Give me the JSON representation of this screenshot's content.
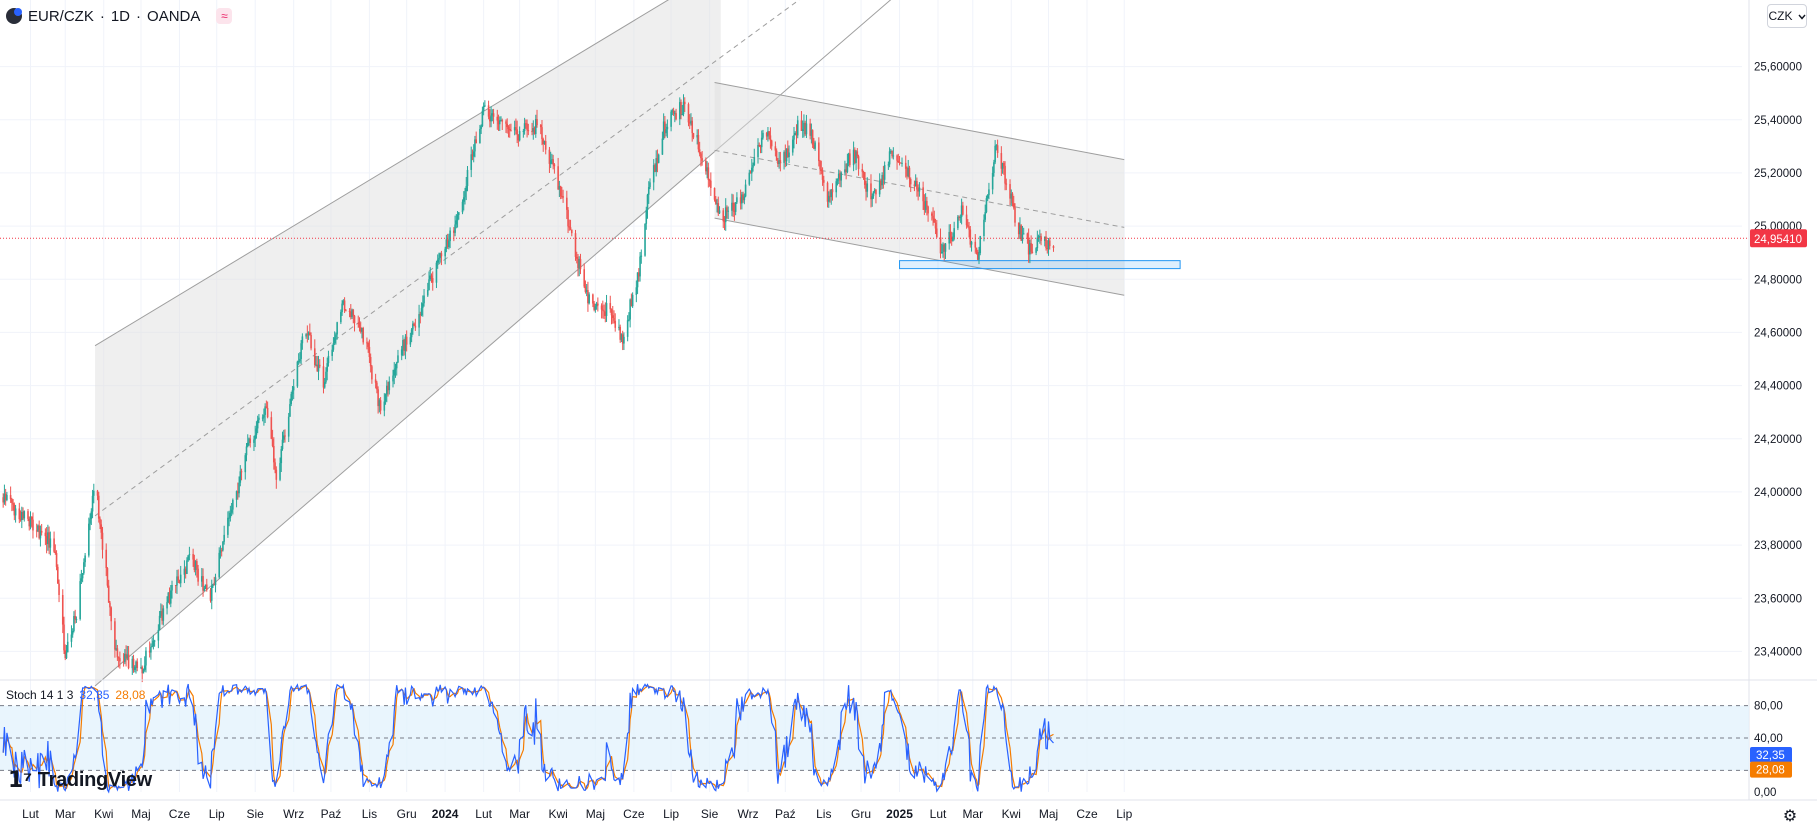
{
  "header": {
    "symbol": "EUR/CZK",
    "interval": "1D",
    "exchange": "OANDA",
    "separator": "·",
    "approx_icon": "≈"
  },
  "currency_button": {
    "label": "CZK",
    "icon": "chevron-down-icon"
  },
  "price_axis": {
    "labels": [
      "25,60000",
      "25,40000",
      "25,20000",
      "25,00000",
      "24,80000",
      "24,60000",
      "24,40000",
      "24,20000",
      "24,00000",
      "23,80000",
      "23,60000",
      "23,40000"
    ],
    "current_price_label": "24,95410"
  },
  "stoch": {
    "name": "Stoch 14 1 3",
    "k_value": "32,35",
    "d_value": "28,08",
    "k_color": "#2962ff",
    "d_color": "#f57c00",
    "axis_labels": [
      "80,00",
      "40,00",
      "0,00"
    ]
  },
  "time_axis": {
    "labels": [
      "Lut",
      "Mar",
      "Kwi",
      "Maj",
      "Cze",
      "Lip",
      "Sie",
      "Wrz",
      "Paź",
      "Lis",
      "Gru",
      "2024",
      "Lut",
      "Mar",
      "Kwi",
      "Maj",
      "Cze",
      "Lip",
      "Sie",
      "Wrz",
      "Paź",
      "Lis",
      "Gru",
      "2025",
      "Lut",
      "Mar",
      "Kwi",
      "Maj",
      "Cze",
      "Lip"
    ],
    "bold": [
      "2024",
      "2025"
    ]
  },
  "branding": {
    "logo_text": "TradingView"
  },
  "colors": {
    "up": "#26a69a",
    "down": "#ef5350",
    "current_price": "#f23645",
    "channel_fill": "#e0e0e0",
    "support_zone": "#2196f3",
    "stoch_band": "#e3f2fd"
  },
  "chart_data": {
    "type": "candlestick",
    "series_anchors": {
      "dates": [
        "2023-01-10",
        "2023-02-20",
        "2023-03-01",
        "2023-03-10",
        "2023-03-25",
        "2023-04-10",
        "2023-05-01",
        "2023-05-25",
        "2023-06-10",
        "2023-06-25",
        "2023-07-10",
        "2023-07-28",
        "2023-08-10",
        "2023-08-18",
        "2023-09-10",
        "2023-09-25",
        "2023-10-10",
        "2023-10-28",
        "2023-11-10",
        "2023-11-25",
        "2023-12-08",
        "2023-12-25",
        "2024-01-10",
        "2024-02-01",
        "2024-02-14",
        "2024-03-01",
        "2024-03-15",
        "2024-03-28",
        "2024-04-10",
        "2024-04-25",
        "2024-05-12",
        "2024-05-22",
        "2024-06-05",
        "2024-06-11",
        "2024-06-25",
        "2024-07-10",
        "2024-07-22",
        "2024-08-01",
        "2024-08-10",
        "2024-08-28",
        "2024-09-15",
        "2024-09-28",
        "2024-10-10",
        "2024-10-22",
        "2024-11-05",
        "2024-11-14",
        "2024-11-25",
        "2024-12-10",
        "2024-12-25",
        "2025-01-07",
        "2025-01-22",
        "2025-02-05",
        "2025-02-20",
        "2025-03-05",
        "2025-03-20",
        "2025-04-01",
        "2025-04-07",
        "2025-04-15",
        "2025-04-25",
        "2025-05-05"
      ],
      "close": [
        23.98,
        23.8,
        23.38,
        23.55,
        24.05,
        23.4,
        23.33,
        23.62,
        23.75,
        23.6,
        23.88,
        24.2,
        24.3,
        24.05,
        24.62,
        24.4,
        24.72,
        24.58,
        24.3,
        24.52,
        24.63,
        24.85,
        25.02,
        25.43,
        25.37,
        25.35,
        25.38,
        25.22,
        25.0,
        24.72,
        24.68,
        24.57,
        24.82,
        25.08,
        25.37,
        25.45,
        25.33,
        25.18,
        25.03,
        25.1,
        25.37,
        25.23,
        25.37,
        25.35,
        25.1,
        25.18,
        25.28,
        25.09,
        25.28,
        25.2,
        25.08,
        24.9,
        25.05,
        24.88,
        25.3,
        25.1,
        24.98,
        24.92,
        24.95,
        24.9
      ]
    },
    "ylim": [
      23.3,
      25.7
    ],
    "current_price": 24.9541,
    "rising_channel": {
      "upper": [
        [
          "2023-03-25",
          24.55
        ],
        [
          "2024-08-10",
          25.97
        ]
      ],
      "lower": [
        [
          "2023-03-25",
          23.27
        ],
        [
          "2024-08-10",
          25.3
        ]
      ]
    },
    "falling_channel": {
      "upper": [
        [
          "2024-08-05",
          25.54
        ],
        [
          "2025-07-01",
          25.25
        ]
      ],
      "lower": [
        [
          "2024-08-05",
          25.03
        ],
        [
          "2025-07-01",
          24.74
        ]
      ]
    },
    "support_zone": {
      "from": "2025-01-01",
      "to": "2025-08-15",
      "low": 24.84,
      "high": 24.87
    },
    "stoch_ylim": [
      0,
      100
    ],
    "stoch_bands": [
      20,
      50,
      80
    ]
  }
}
